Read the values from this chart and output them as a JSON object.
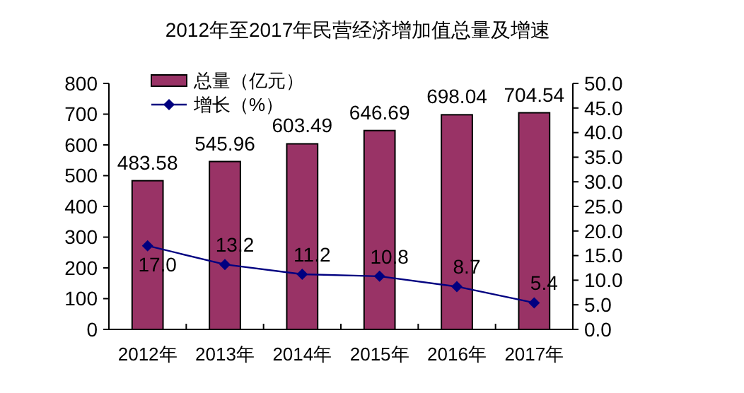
{
  "chart_data": {
    "type": "bar",
    "title": "2012年至2017年民营经济增加值总量及增速",
    "categories": [
      "2012年",
      "2013年",
      "2014年",
      "2015年",
      "2016年",
      "2017年"
    ],
    "series": [
      {
        "name": "总量（亿元）",
        "color": "#993366",
        "values": [
          483.58,
          545.96,
          603.49,
          646.69,
          698.04,
          704.54
        ]
      },
      {
        "name": "增长（%）",
        "type": "line",
        "axis": "y2",
        "color": "#000080",
        "marker": "diamond",
        "values": [
          17.0,
          13.2,
          11.2,
          10.8,
          8.7,
          5.4
        ],
        "value_labels": [
          "17.0",
          "13.2",
          "11.2",
          "10.8",
          "8.7",
          "5.4"
        ]
      }
    ],
    "ylim": [
      0,
      800
    ],
    "yticks": [
      0,
      100,
      200,
      300,
      400,
      500,
      600,
      700,
      800
    ],
    "y2lim": [
      0,
      50
    ],
    "y2ticks": [
      {
        "value": 0,
        "label": "0.0"
      },
      {
        "value": 5,
        "label": "5.0"
      },
      {
        "value": 10,
        "label": "10.0"
      },
      {
        "value": 15,
        "label": "15.0"
      },
      {
        "value": 20,
        "label": "20.0"
      },
      {
        "value": 25,
        "label": "25.0"
      },
      {
        "value": 30,
        "label": "30.0"
      },
      {
        "value": 35,
        "label": "35.0"
      },
      {
        "value": 40,
        "label": "40.0"
      },
      {
        "value": 45,
        "label": "45.0"
      },
      {
        "value": 50,
        "label": "50.0"
      }
    ],
    "data_labels": true,
    "legend": "top left",
    "grid": false
  }
}
